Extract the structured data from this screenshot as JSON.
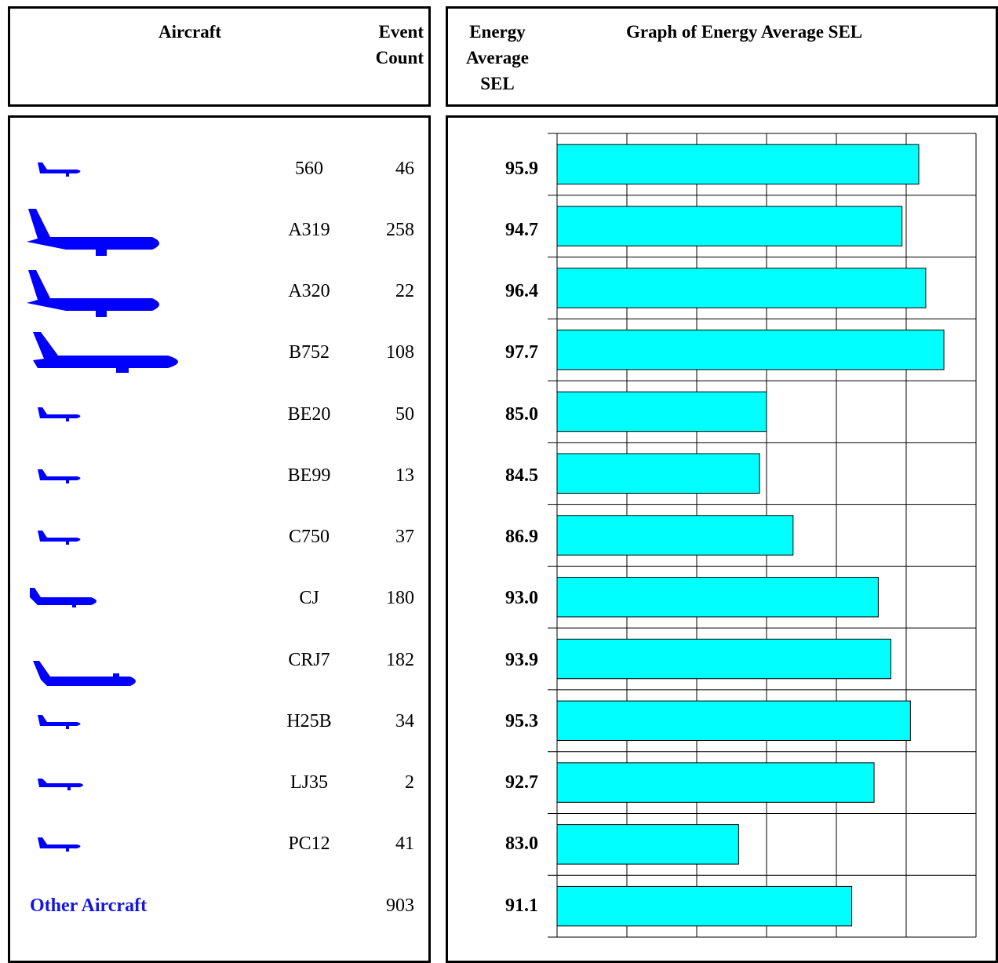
{
  "headers": {
    "aircraft": "Aircraft",
    "event_count_line1": "Event",
    "event_count_line2": "Count",
    "sel_line1": "Energy",
    "sel_line2": "Average",
    "sel_line3": "SEL",
    "graph_title": "Graph of Energy Average SEL"
  },
  "colors": {
    "bar": "#00ffff",
    "aircraft_icon": "#0000ff",
    "other_text": "#1414e6"
  },
  "chart_data": {
    "type": "bar",
    "orientation": "horizontal",
    "title": "Graph of Energy Average SEL",
    "categories": [
      "560",
      "A319",
      "A320",
      "B752",
      "BE20",
      "BE99",
      "C750",
      "CJ",
      "CRJ7",
      "H25B",
      "LJ35",
      "PC12",
      "Other Aircraft"
    ],
    "values": [
      95.9,
      94.7,
      96.4,
      97.7,
      85.0,
      84.5,
      86.9,
      93.0,
      93.9,
      95.3,
      92.7,
      83.0,
      91.1
    ],
    "event_counts": [
      46,
      258,
      22,
      108,
      50,
      13,
      37,
      180,
      182,
      34,
      2,
      41,
      903
    ],
    "xlim": [
      70,
      100
    ],
    "grid": true,
    "value_labels": [
      "95.9",
      "94.7",
      "96.4",
      "97.7",
      "85.0",
      "84.5",
      "86.9",
      "93.0",
      "93.9",
      "95.3",
      "92.7",
      "83.0",
      "91.1"
    ]
  },
  "rows": [
    {
      "code": "560",
      "count": "46",
      "icon": "small-jet-icon"
    },
    {
      "code": "A319",
      "count": "258",
      "icon": "narrowbody-jet-icon"
    },
    {
      "code": "A320",
      "count": "22",
      "icon": "narrowbody-jet-icon"
    },
    {
      "code": "B752",
      "count": "108",
      "icon": "large-jet-icon"
    },
    {
      "code": "BE20",
      "count": "50",
      "icon": "small-jet-icon"
    },
    {
      "code": "BE99",
      "count": "13",
      "icon": "small-jet-icon"
    },
    {
      "code": "C750",
      "count": "37",
      "icon": "small-jet-icon"
    },
    {
      "code": "CJ",
      "count": "180",
      "icon": "business-jet-icon"
    },
    {
      "code": "CRJ7",
      "count": "182",
      "icon": "regional-jet-icon"
    },
    {
      "code": "H25B",
      "count": "34",
      "icon": "small-jet-icon"
    },
    {
      "code": "LJ35",
      "count": "2",
      "icon": "small-jet-icon"
    },
    {
      "code": "PC12",
      "count": "41",
      "icon": "small-jet-icon"
    }
  ],
  "other_row": {
    "label": "Other Aircraft",
    "count": "903"
  }
}
